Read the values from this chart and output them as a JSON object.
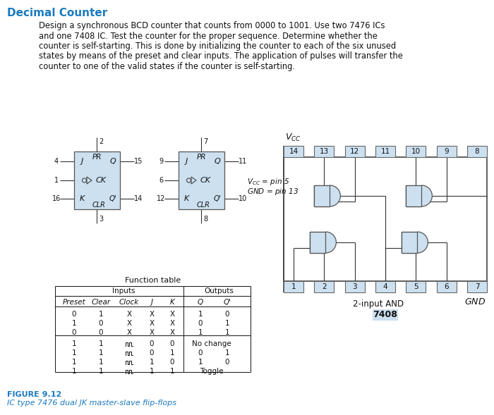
{
  "title": "Decimal Counter",
  "title_color": "#1a7abf",
  "bg_color": "#ffffff",
  "body_text_lines": [
    "Design a synchronous BCD counter that counts from 0000 to 1001. Use two 7476 ICs",
    "and one 7408 IC. Test the counter for the proper sequence. Determine whether the",
    "counter is self-starting. This is done by initializing the counter to each of the six unused",
    "states by means of the preset and clear inputs. The application of pulses will transfer the",
    "counter to one of the valid states if the counter is self-starting."
  ],
  "ff_box_color": "#cce0f0",
  "ff_box_edge": "#555555",
  "and_gate_color": "#cce0f0",
  "and_gate_edge": "#555555",
  "pin_box_color": "#cce0f0",
  "pin_box_edge": "#666666",
  "figure_label": "FIGURE 9.12",
  "figure_caption": "IC type 7476 dual JK master-slave flip-flops",
  "figure_label_color": "#1a7abf",
  "figure_caption_color": "#1a7abf",
  "ic_outline_color": "#444444",
  "wire_color": "#333333",
  "text_color": "#111111"
}
